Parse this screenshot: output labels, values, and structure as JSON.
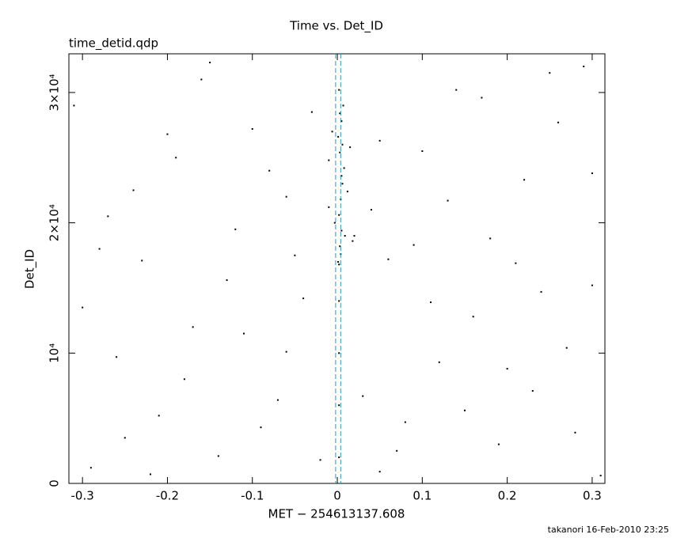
{
  "chart_data": {
    "type": "scatter",
    "title": "Time vs. Det_ID",
    "subtitle": "time_detid.qdp",
    "x_label": "MET − 254613137.608",
    "y_label": "Det_ID",
    "footer": "takanori 16-Feb-2010 23:25",
    "color": "#000000",
    "xlim": [
      -0.316,
      0.315
    ],
    "ylim": [
      0,
      32970
    ],
    "xticks": [
      -0.3,
      -0.2,
      -0.1,
      0,
      0.1,
      0.2,
      0.3
    ],
    "yticks": [
      0,
      {
        "value": 10000,
        "label": "10⁴"
      },
      {
        "value": 20000,
        "label": "2×10⁴"
      },
      {
        "value": 30000,
        "label": "3×10⁴"
      }
    ],
    "vlines": [
      -0.002,
      0.004
    ],
    "vline_color": "#2a9ab0",
    "x": [
      -0.29,
      -0.25,
      -0.21,
      -0.18,
      -0.14,
      -0.11,
      -0.07,
      -0.04,
      0.05,
      0.08,
      0.12,
      0.16,
      0.19,
      0.23,
      0.27,
      0.3,
      -0.3,
      -0.26,
      -0.22,
      -0.17,
      -0.13,
      -0.09,
      -0.06,
      -0.02,
      0.03,
      0.07,
      0.11,
      0.15,
      0.2,
      0.24,
      0.28,
      0.31,
      -0.28,
      -0.24,
      -0.2,
      -0.16,
      -0.12,
      -0.08,
      -0.05,
      -0.03,
      0.04,
      0.06,
      0.1,
      0.14,
      0.18,
      0.22,
      0.26,
      0.29,
      -0.31,
      -0.27,
      -0.23,
      -0.19,
      -0.15,
      -0.1,
      -0.06,
      -0.01,
      0.02,
      0.05,
      0.09,
      0.13,
      0.17,
      0.21,
      0.25,
      0.3,
      0.001,
      0.003,
      0.005,
      0.002,
      0.004,
      0.006,
      0.008,
      0.003,
      0.001,
      0.005,
      0.007,
      0.002,
      0.004,
      0.009,
      0.012,
      0.015,
      -0.003,
      -0.006,
      0.003,
      0.005,
      0.002,
      0.018,
      -0.01,
      0.006,
      0.002,
      0.002,
      0.002,
      0.002
    ],
    "values": [
      1200,
      3500,
      5200,
      8000,
      2100,
      11500,
      6400,
      14200,
      900,
      4700,
      9300,
      12800,
      3000,
      7100,
      10400,
      15200,
      13500,
      9700,
      700,
      12000,
      15600,
      4300,
      10100,
      1800,
      6700,
      2500,
      13900,
      5600,
      8800,
      14700,
      3900,
      600,
      18000,
      22500,
      26800,
      31000,
      19500,
      24000,
      17500,
      28500,
      21000,
      17200,
      25500,
      30200,
      18800,
      23300,
      27700,
      32000,
      29000,
      20500,
      17100,
      25000,
      32300,
      27200,
      22000,
      24800,
      19000,
      26300,
      18300,
      21700,
      29600,
      16900,
      31500,
      23800,
      17000,
      18200,
      19400,
      20600,
      21800,
      23000,
      24200,
      25400,
      26600,
      27800,
      29000,
      30200,
      17600,
      19000,
      22400,
      25800,
      20000,
      27000,
      28400,
      23600,
      16800,
      18600,
      21200,
      26000,
      2000,
      6000,
      10000,
      14000
    ]
  }
}
